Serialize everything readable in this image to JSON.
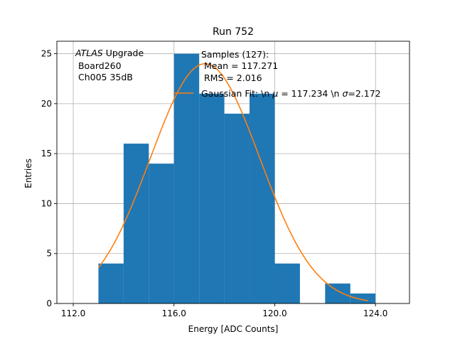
{
  "chart_data": {
    "type": "bar",
    "title": "Run 752",
    "xlabel": "Energy [ADC Counts]",
    "ylabel": "Entries",
    "xlim": [
      111.35,
      125.35
    ],
    "ylim": [
      0,
      26.25
    ],
    "xticks": [
      112.0,
      116.0,
      120.0,
      124.0
    ],
    "xtick_labels": [
      "112.0",
      "116.0",
      "120.0",
      "124.0"
    ],
    "yticks": [
      0,
      5,
      10,
      15,
      20,
      25
    ],
    "ytick_labels": [
      "0",
      "5",
      "10",
      "15",
      "20",
      "25"
    ],
    "grid": true,
    "bar_color": "#1f77b4",
    "fit_color": "#ff7f0e",
    "bins": [
      {
        "x0": 113.0,
        "x1": 114.0,
        "count": 4
      },
      {
        "x0": 114.0,
        "x1": 115.0,
        "count": 16
      },
      {
        "x0": 115.0,
        "x1": 116.0,
        "count": 14
      },
      {
        "x0": 116.0,
        "x1": 117.0,
        "count": 25
      },
      {
        "x0": 117.0,
        "x1": 118.0,
        "count": 21
      },
      {
        "x0": 118.0,
        "x1": 119.0,
        "count": 19
      },
      {
        "x0": 119.0,
        "x1": 120.0,
        "count": 21
      },
      {
        "x0": 120.0,
        "x1": 121.0,
        "count": 4
      },
      {
        "x0": 121.0,
        "x1": 122.0,
        "count": 0
      },
      {
        "x0": 122.0,
        "x1": 123.0,
        "count": 2
      },
      {
        "x0": 123.0,
        "x1": 124.0,
        "count": 1
      }
    ],
    "fit": {
      "name": "Gaussian Fit: \\n μ = 117.234 \\n σ=2.172",
      "mean": 117.234,
      "sigma": 2.172,
      "x_range": [
        113.0,
        123.7
      ],
      "peak": 24.0
    },
    "annotation": {
      "atlas": "ATLAS",
      "upgrade": " Upgrade",
      "board": " Board260",
      "channel": " Ch005 35dB"
    },
    "legend": {
      "samples": "Samples (127):",
      "mean": " Mean = 117.271",
      "rms": " RMS = 2.016",
      "fit_label_pre": "Gaussian Fit: \\n ",
      "fit_mu": "μ",
      "fit_label_mid": " = 117.234 \\n ",
      "fit_sigma": "σ",
      "fit_label_post": "=2.172"
    }
  }
}
